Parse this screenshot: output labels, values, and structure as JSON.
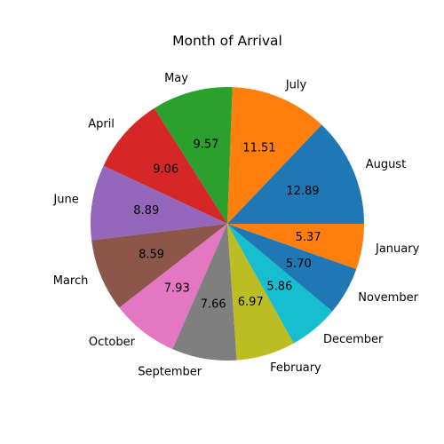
{
  "chart_data": {
    "type": "pie",
    "title": "Month of Arrival",
    "start_angle_deg": 0,
    "direction": "counterclockwise",
    "slices": [
      {
        "label": "August",
        "value": 12.89,
        "display": "12.89",
        "color": "#1f77b4"
      },
      {
        "label": "July",
        "value": 11.51,
        "display": "11.51",
        "color": "#ff7f0e"
      },
      {
        "label": "May",
        "value": 9.57,
        "display": "9.57",
        "color": "#2ca02c"
      },
      {
        "label": "April",
        "value": 9.06,
        "display": "9.06",
        "color": "#d62728"
      },
      {
        "label": "June",
        "value": 8.89,
        "display": "8.89",
        "color": "#9467bd"
      },
      {
        "label": "March",
        "value": 8.59,
        "display": "8.59",
        "color": "#8c564b"
      },
      {
        "label": "October",
        "value": 7.93,
        "display": "7.93",
        "color": "#e377c2"
      },
      {
        "label": "September",
        "value": 7.66,
        "display": "7.66",
        "color": "#7f7f7f"
      },
      {
        "label": "February",
        "value": 6.97,
        "display": "6.97",
        "color": "#bcbd22"
      },
      {
        "label": "December",
        "value": 5.86,
        "display": "5.86",
        "color": "#17becf"
      },
      {
        "label": "November",
        "value": 5.7,
        "display": "5.70",
        "color": "#1f77b4"
      },
      {
        "label": "January",
        "value": 5.37,
        "display": "5.37",
        "color": "#ff7f0e"
      }
    ]
  }
}
